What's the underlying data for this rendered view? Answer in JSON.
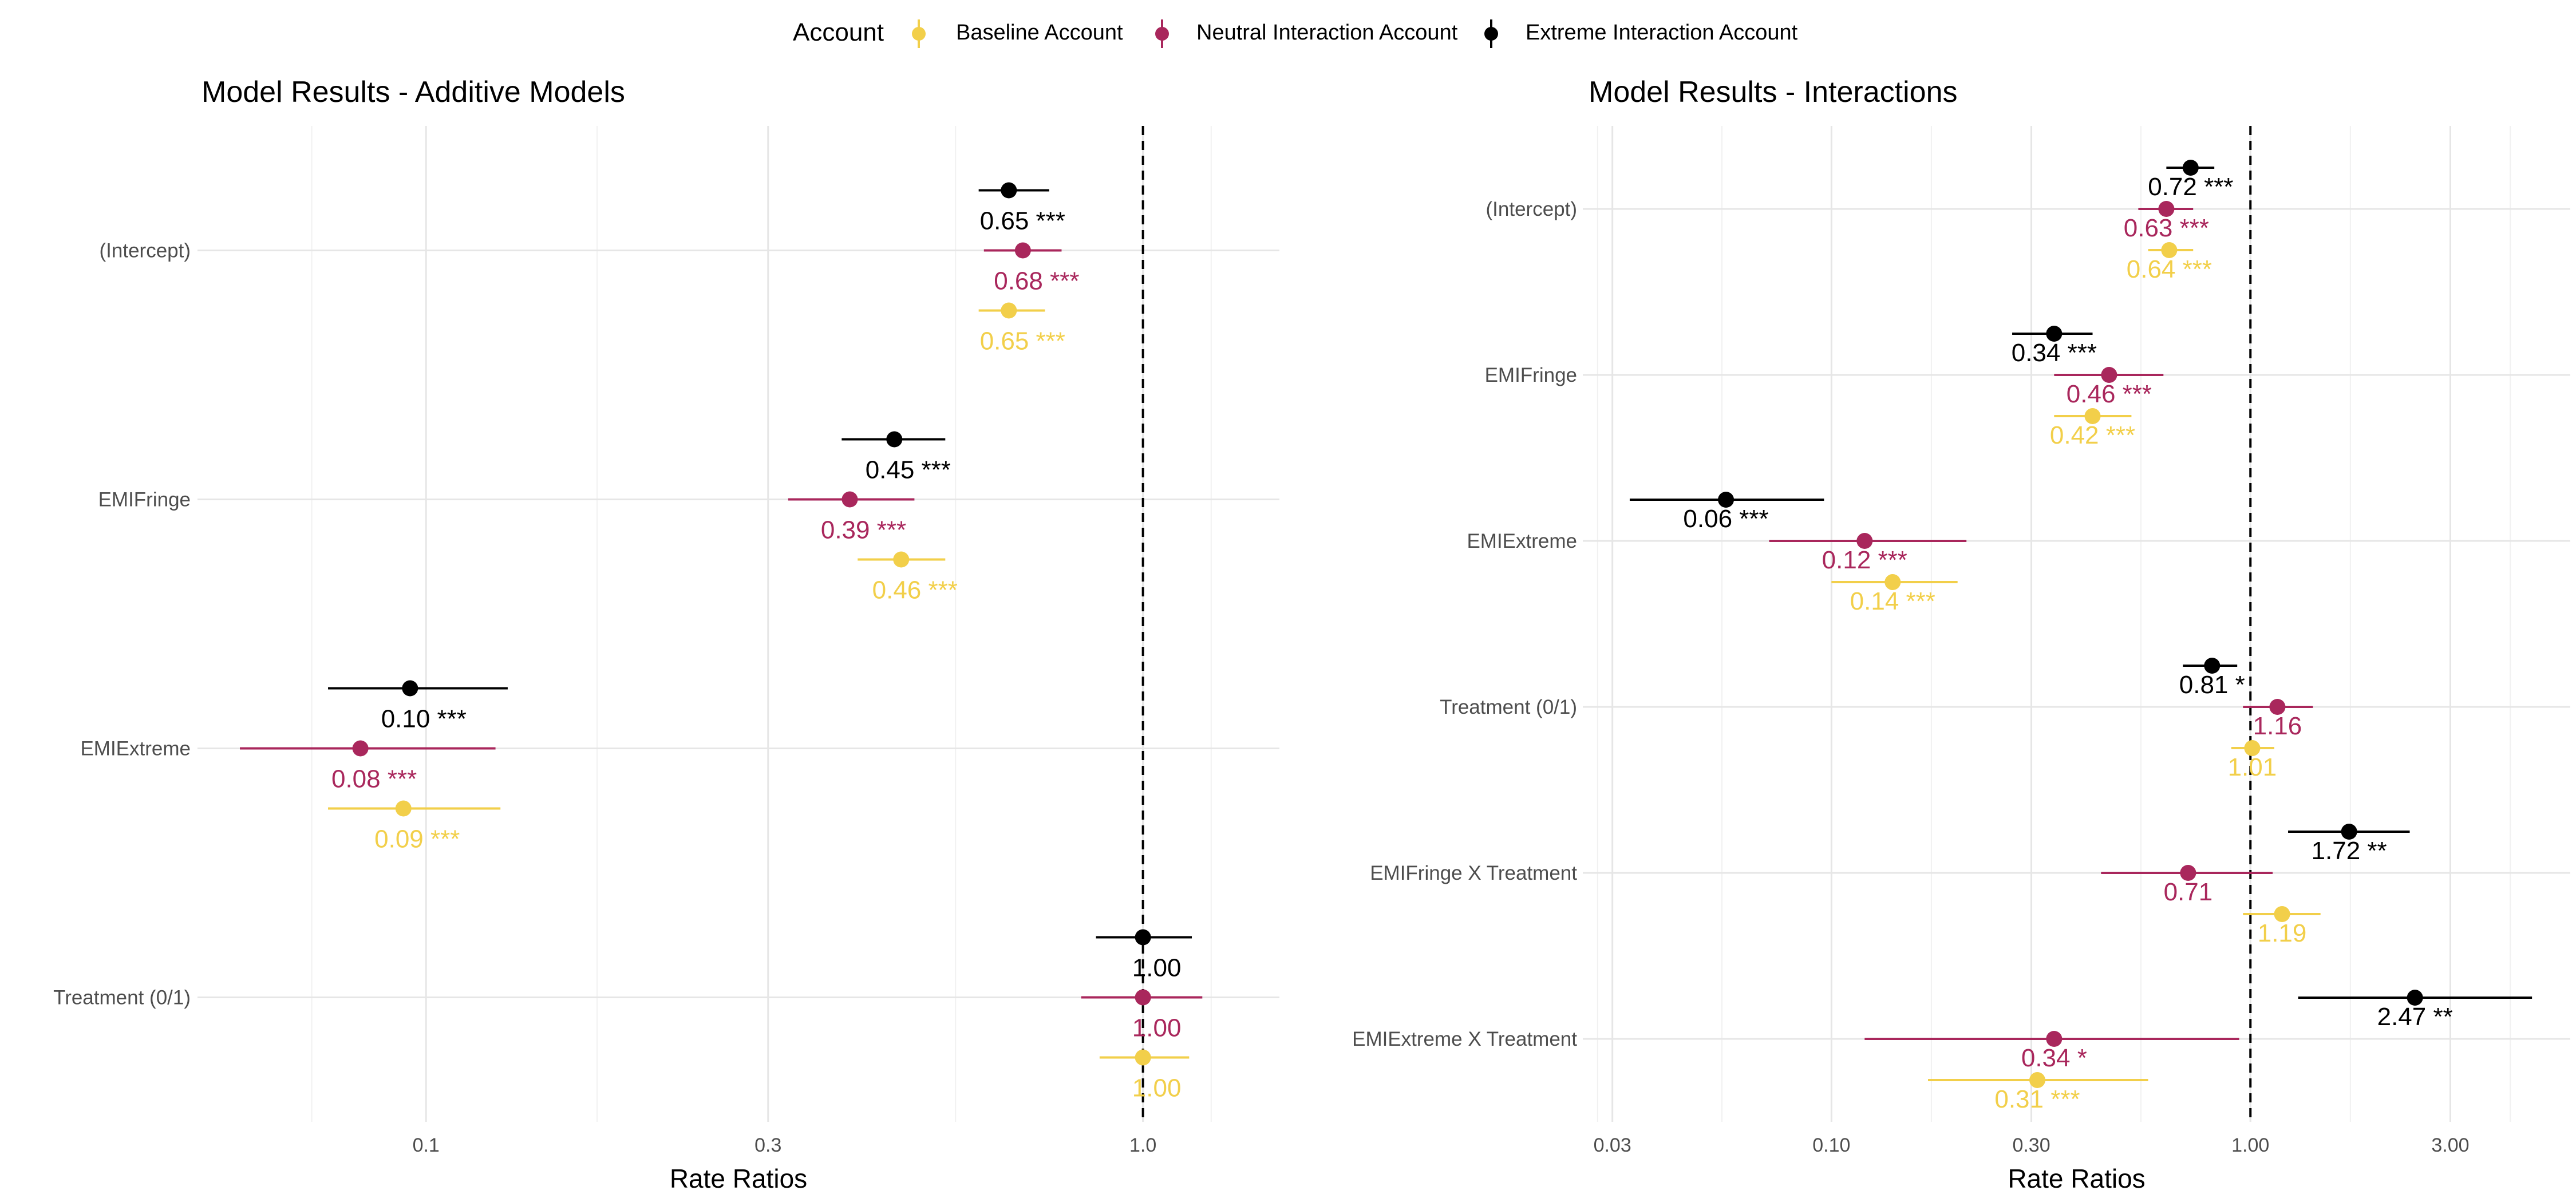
{
  "legend": {
    "title": "Account",
    "items": [
      {
        "label": "Baseline Account",
        "color": "#F2CF4A"
      },
      {
        "label": "Neutral Interaction Account",
        "color": "#A9275C"
      },
      {
        "label": "Extreme Interaction Account",
        "color": "#000000"
      }
    ]
  },
  "chart_data": [
    {
      "type": "scatter",
      "subtype": "forest-plot",
      "title": "Model Results - Additive Models",
      "xlabel": "Rate Ratios",
      "ylabel": "",
      "x_scale": "log10",
      "xlim": [
        0.048,
        1.55
      ],
      "x_ticks": [
        0.1,
        0.3,
        1.0
      ],
      "x_tick_labels": [
        "0.1",
        "0.3",
        "1.0"
      ],
      "reference_line": 1.0,
      "grid": true,
      "categories": [
        "(Intercept)",
        "EMIFringe",
        "EMIExtreme",
        "Treatment (0/1)"
      ],
      "series": [
        {
          "name": "Extreme Interaction Account",
          "color": "#000000",
          "estimates": [
            0.65,
            0.45,
            0.095,
            1.0
          ],
          "ci_low": [
            0.59,
            0.38,
            0.073,
            0.86
          ],
          "ci_high": [
            0.74,
            0.53,
            0.13,
            1.17
          ],
          "labels": [
            "0.65 ***",
            "0.45 ***",
            "0.10 ***",
            "1.00"
          ]
        },
        {
          "name": "Neutral Interaction Account",
          "color": "#A9275C",
          "estimates": [
            0.68,
            0.39,
            0.081,
            1.0
          ],
          "ci_low": [
            0.6,
            0.32,
            0.055,
            0.82
          ],
          "ci_high": [
            0.77,
            0.48,
            0.125,
            1.21
          ],
          "labels": [
            "0.68 ***",
            "0.39 ***",
            "0.08 ***",
            "1.00"
          ]
        },
        {
          "name": "Baseline Account",
          "color": "#F2CF4A",
          "estimates": [
            0.65,
            0.46,
            0.093,
            1.0
          ],
          "ci_low": [
            0.59,
            0.4,
            0.073,
            0.87
          ],
          "ci_high": [
            0.73,
            0.53,
            0.127,
            1.16
          ],
          "labels": [
            "0.65 ***",
            "0.46 ***",
            "0.09 ***",
            "1.00"
          ]
        }
      ]
    },
    {
      "type": "scatter",
      "subtype": "forest-plot",
      "title": "Model Results - Interactions",
      "xlabel": "Rate Ratios",
      "ylabel": "",
      "x_scale": "log10",
      "xlim": [
        0.0255,
        5.8
      ],
      "x_ticks": [
        0.03,
        0.1,
        0.3,
        1.0,
        3.0
      ],
      "x_tick_labels": [
        "0.03",
        "0.10",
        "0.30",
        "1.00",
        "3.00"
      ],
      "reference_line": 1.0,
      "grid": true,
      "categories": [
        "(Intercept)",
        "EMIFringe",
        "EMIExtreme",
        "Treatment (0/1)",
        "EMIFringe X Treatment",
        "EMIExtreme X Treatment"
      ],
      "series": [
        {
          "name": "Extreme Interaction Account",
          "color": "#000000",
          "estimates": [
            0.72,
            0.34,
            0.056,
            0.81,
            1.72,
            2.47
          ],
          "ci_low": [
            0.63,
            0.27,
            0.033,
            0.69,
            1.23,
            1.3
          ],
          "ci_high": [
            0.82,
            0.42,
            0.096,
            0.93,
            2.4,
            4.7
          ],
          "labels": [
            "0.72 ***",
            "0.34 ***",
            "0.06 ***",
            "0.81 *",
            "1.72 **",
            "2.47 **"
          ]
        },
        {
          "name": "Neutral Interaction Account",
          "color": "#A9275C",
          "estimates": [
            0.63,
            0.46,
            0.12,
            1.16,
            0.71,
            0.34
          ],
          "ci_low": [
            0.54,
            0.34,
            0.071,
            0.96,
            0.44,
            0.12
          ],
          "ci_high": [
            0.73,
            0.62,
            0.21,
            1.41,
            1.13,
            0.94
          ],
          "labels": [
            "0.63 ***",
            "0.46 ***",
            "0.12 ***",
            "1.16",
            "0.71",
            "0.34 *"
          ]
        },
        {
          "name": "Baseline Account",
          "color": "#F2CF4A",
          "estimates": [
            0.64,
            0.42,
            0.14,
            1.01,
            1.19,
            0.31
          ],
          "ci_low": [
            0.57,
            0.34,
            0.1,
            0.9,
            0.96,
            0.17
          ],
          "ci_high": [
            0.73,
            0.52,
            0.2,
            1.14,
            1.47,
            0.57
          ],
          "labels": [
            "0.64 ***",
            "0.42 ***",
            "0.14 ***",
            "1.01",
            "1.19",
            "0.31 ***"
          ]
        }
      ]
    }
  ]
}
